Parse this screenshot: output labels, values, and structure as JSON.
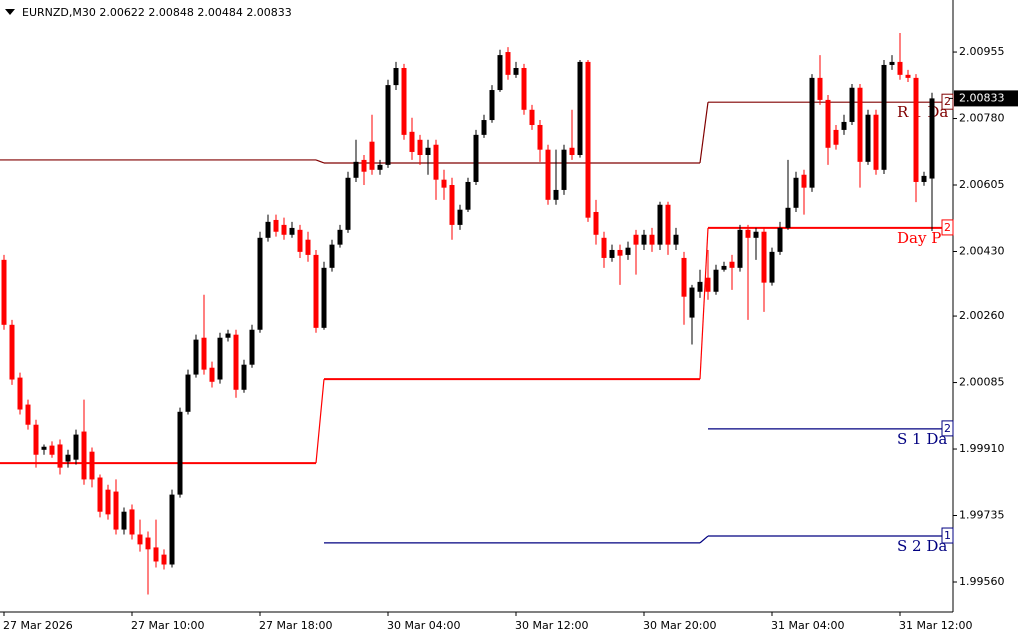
{
  "chart_data": {
    "type": "candlestick",
    "title": "EURNZD,M30  2.00622 2.00848 2.00484 2.00833",
    "up_color": "#000000",
    "down_color": "#ff0000",
    "categories": [
      "27 Mar 2026",
      null,
      null,
      null,
      null,
      null,
      null,
      null,
      null,
      null,
      null,
      null,
      null,
      null,
      null,
      null,
      "27 Mar 10:00",
      null,
      null,
      null,
      null,
      null,
      null,
      null,
      null,
      null,
      null,
      null,
      null,
      null,
      null,
      null,
      "27 Mar 18:00",
      null,
      null,
      null,
      null,
      null,
      null,
      null,
      null,
      null,
      null,
      null,
      null,
      null,
      null,
      null,
      "30 Mar 04:00",
      null,
      null,
      null,
      null,
      null,
      null,
      null,
      null,
      null,
      null,
      null,
      null,
      null,
      null,
      null,
      "30 Mar 12:00",
      null,
      null,
      null,
      null,
      null,
      null,
      null,
      null,
      null,
      null,
      null,
      null,
      null,
      null,
      null,
      "30 Mar 20:00",
      null,
      null,
      null,
      null,
      null,
      null,
      null,
      null,
      null,
      null,
      null,
      null,
      null,
      null,
      null,
      "31 Mar 04:00",
      null,
      null,
      null,
      null,
      null,
      null,
      null,
      null,
      null,
      null,
      null,
      null,
      null,
      null,
      null,
      "31 Mar 12:00",
      null,
      null,
      null,
      null
    ],
    "open": [
      2.00408,
      2.00237,
      2.00098,
      2.00027,
      1.99974,
      1.99908,
      1.99919,
      1.99922,
      1.99877,
      1.99882,
      1.99956,
      1.99903,
      1.99835,
      1.99803,
      1.99798,
      1.99698,
      1.99751,
      1.99685,
      1.99677,
      1.99651,
      1.99632,
      1.99606,
      1.9979,
      2.00008,
      2.00106,
      2.00203,
      2.00124,
      2.00093,
      2.00203,
      2.00211,
      2.00066,
      2.00132,
      2.00224,
      2.00466,
      2.00513,
      2.005,
      2.00474,
      2.00487,
      2.00461,
      2.00421,
      2.00229,
      2.00387,
      2.00448,
      2.00487,
      2.00624,
      2.00671,
      2.00719,
      2.00645,
      2.00658,
      2.00868,
      2.00913,
      2.00745,
      2.00724,
      2.00684,
      2.00711,
      2.00619,
      2.00605,
      2.005,
      2.0054,
      2.00613,
      2.00737,
      2.00776,
      2.00855,
      2.00955,
      2.00895,
      2.00913,
      2.00803,
      2.00763,
      2.00698,
      2.00566,
      2.00592,
      2.00703,
      2.00684,
      2.00929,
      2.00534,
      2.00466,
      2.00413,
      2.00434,
      2.00421,
      2.00474,
      2.00448,
      2.00474,
      2.00448,
      2.00553,
      2.00448,
      2.00413,
      2.00256,
      2.00324,
      2.00361,
      2.00324,
      2.00382,
      2.00403,
      2.00387,
      2.00487,
      2.00466,
      2.00482,
      2.00348,
      2.00429,
      2.00492,
      2.00545,
      2.00632,
      2.00598,
      2.00887,
      2.00829,
      2.0075,
      2.0075,
      2.00771,
      2.00861,
      2.00666,
      2.0079,
      2.00645,
      2.00921,
      2.00929,
      2.00895,
      2.00887,
      2.00613,
      2.00622
    ],
    "high": [
      2.00421,
      2.0025,
      2.00111,
      2.0004,
      1.99987,
      1.99922,
      1.9993,
      1.99935,
      1.99908,
      1.99961,
      2.0004,
      1.99914,
      1.99843,
      1.99816,
      1.9983,
      1.99756,
      1.99764,
      1.99724,
      1.99693,
      1.99724,
      1.99646,
      1.99803,
      2.00019,
      2.00119,
      2.00211,
      2.00316,
      2.0014,
      2.00216,
      2.00224,
      2.00224,
      2.00145,
      2.00237,
      2.00482,
      2.00527,
      2.00527,
      2.00519,
      2.00508,
      2.005,
      2.00482,
      2.00434,
      2.00403,
      2.00461,
      2.005,
      2.0064,
      2.00724,
      2.00684,
      2.0079,
      2.00671,
      2.00882,
      2.00929,
      2.00924,
      2.00782,
      2.00737,
      2.00724,
      2.00724,
      2.00645,
      2.00624,
      2.00553,
      2.00624,
      2.0075,
      2.0079,
      2.00868,
      2.00961,
      2.00968,
      2.00929,
      2.00924,
      2.00816,
      2.00776,
      2.00711,
      2.00698,
      2.00711,
      2.00803,
      2.00934,
      2.00934,
      2.00566,
      2.00482,
      2.00448,
      2.00448,
      2.00456,
      2.00487,
      2.00487,
      2.00492,
      2.00561,
      2.00561,
      2.00492,
      2.00429,
      2.00342,
      2.00382,
      2.00434,
      2.00395,
      2.00403,
      2.00421,
      2.005,
      2.005,
      2.00492,
      2.00492,
      2.0044,
      2.00508,
      2.00671,
      2.0064,
      2.00645,
      2.00897,
      2.00947,
      2.00842,
      2.00763,
      2.0079,
      2.00871,
      2.00871,
      2.00803,
      2.00803,
      2.00934,
      2.00947,
      2.01005,
      2.00908,
      2.00897,
      2.0064,
      2.00848
    ],
    "low": [
      2.00224,
      2.00079,
      2.00001,
      1.99961,
      1.99861,
      1.99895,
      1.99887,
      1.99843,
      1.99861,
      1.99869,
      1.99816,
      1.99809,
      1.9973,
      1.99724,
      1.99685,
      1.99685,
      1.99672,
      1.9964,
      1.99527,
      1.99598,
      1.99593,
      1.99598,
      1.99782,
      2.00001,
      2.00098,
      2.00106,
      2.00072,
      2.00082,
      2.00193,
      2.00045,
      2.00058,
      2.00124,
      2.00216,
      2.00456,
      2.00469,
      2.00461,
      2.00466,
      2.00413,
      2.00403,
      2.00216,
      2.00224,
      2.00377,
      2.0044,
      2.00479,
      2.00613,
      2.00605,
      2.00632,
      2.00632,
      2.0065,
      2.00855,
      2.00724,
      2.00671,
      2.00658,
      2.00632,
      2.00566,
      2.00566,
      2.00461,
      2.00487,
      2.00534,
      2.00605,
      2.00729,
      2.00769,
      2.0085,
      2.00882,
      2.00887,
      2.0079,
      2.0075,
      2.00666,
      2.00553,
      2.00553,
      2.00579,
      2.00671,
      2.00677,
      2.00508,
      2.00448,
      2.00387,
      2.00403,
      2.00342,
      2.00408,
      2.00369,
      2.00434,
      2.00429,
      2.00434,
      2.00421,
      2.00434,
      2.00237,
      2.00185,
      2.00308,
      2.00303,
      2.00316,
      2.00377,
      2.00329,
      2.00377,
      2.0025,
      2.00408,
      2.00271,
      2.0034,
      2.00421,
      2.00487,
      2.00534,
      2.00527,
      2.00587,
      2.00816,
      2.00658,
      2.00698,
      2.00737,
      2.00763,
      2.00598,
      2.00658,
      2.00632,
      2.00634,
      2.00908,
      2.00882,
      2.00876,
      2.0056,
      2.00603,
      2.00484
    ],
    "close": [
      2.00237,
      2.00093,
      2.00014,
      1.99974,
      1.99895,
      1.99916,
      1.99895,
      1.99861,
      1.99895,
      1.99948,
      1.9983,
      1.9983,
      1.99745,
      1.99738,
      1.99698,
      1.99745,
      1.99685,
      1.99659,
      1.99646,
      1.99614,
      1.99606,
      1.9979,
      2.00008,
      2.00106,
      2.00198,
      2.00119,
      2.00087,
      2.00203,
      2.00214,
      2.00066,
      2.00132,
      2.00224,
      2.00466,
      2.00508,
      2.00482,
      2.00474,
      2.00492,
      2.00429,
      2.00421,
      2.00229,
      2.00387,
      2.00448,
      2.00487,
      2.00624,
      2.00666,
      2.0064,
      2.00645,
      2.00658,
      2.00868,
      2.00913,
      2.00737,
      2.00692,
      2.00684,
      2.00703,
      2.00619,
      2.00598,
      2.005,
      2.0054,
      2.00613,
      2.00737,
      2.00776,
      2.00855,
      2.00947,
      2.00895,
      2.00913,
      2.00803,
      2.00763,
      2.00698,
      2.00566,
      2.00592,
      2.00698,
      2.00684,
      2.00929,
      2.00519,
      2.00474,
      2.00413,
      2.00434,
      2.00419,
      2.0044,
      2.00448,
      2.00474,
      2.00448,
      2.00553,
      2.00448,
      2.00474,
      2.00311,
      2.00335,
      2.0035,
      2.00324,
      2.00382,
      2.00392,
      2.00387,
      2.00487,
      2.00466,
      2.00482,
      2.00348,
      2.00429,
      2.00492,
      2.00545,
      2.00624,
      2.00598,
      2.00887,
      2.00829,
      2.00703,
      2.00711,
      2.00771,
      2.00861,
      2.00666,
      2.0079,
      2.00645,
      2.00921,
      2.00929,
      2.00895,
      2.00887,
      2.00613,
      2.00629,
      2.00833
    ],
    "period_starts": [
      0,
      40,
      88
    ],
    "levels": [
      {
        "name": "R 1 Da",
        "tag": "2",
        "color": "#800000",
        "values": [
          2.00671,
          2.00663,
          2.00823
        ]
      },
      {
        "name": "Day P",
        "tag": "2",
        "color": "#ff0000",
        "values": [
          1.99873,
          2.00094,
          2.00492
        ]
      },
      {
        "name": "S 1 Da",
        "tag": "2",
        "color": "#000080",
        "values": [
          null,
          null,
          1.99963
        ]
      },
      {
        "name": "S 2 Da",
        "tag": "1",
        "color": "#000080",
        "values": [
          null,
          1.99663,
          1.99681
        ]
      }
    ],
    "ylim": [
      1.99481,
      2.01092
    ],
    "yticks": [
      2.00955,
      {
        "value": 2.0078,
        "label": "2.00780"
      },
      2.00605,
      {
        "value": 2.0043,
        "label": "2.00430"
      },
      {
        "value": 2.0026,
        "label": "2.00260"
      },
      2.00085,
      {
        "value": 1.9991,
        "label": "1.99910"
      },
      1.99735,
      {
        "value": 1.9956,
        "label": "1.99560"
      }
    ]
  }
}
